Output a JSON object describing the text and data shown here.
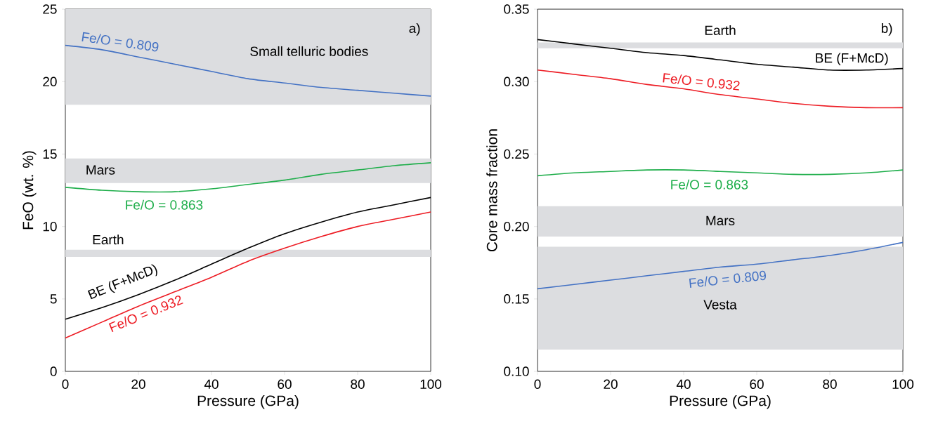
{
  "chart_data": [
    {
      "type": "line",
      "xlabel": "Pressure (GPa)",
      "ylabel": "FeO (wt. %)",
      "xlim": [
        0,
        100
      ],
      "ylim": [
        0,
        25
      ],
      "xticks": [
        0,
        20,
        40,
        60,
        80,
        100
      ],
      "yticks": [
        0,
        5,
        10,
        15,
        20,
        25
      ],
      "grid": false,
      "series": [
        {
          "name": "Fe/O = 0.809",
          "color": "#4472c4",
          "x": [
            0,
            10,
            20,
            30,
            40,
            50,
            60,
            70,
            80,
            90,
            100
          ],
          "values": [
            22.5,
            22.2,
            21.7,
            21.2,
            20.7,
            20.2,
            19.9,
            19.6,
            19.4,
            19.2,
            19.0
          ]
        },
        {
          "name": "Fe/O = 0.863",
          "color": "#1fae4b",
          "x": [
            0,
            10,
            20,
            30,
            40,
            50,
            60,
            70,
            80,
            90,
            100
          ],
          "values": [
            12.7,
            12.5,
            12.4,
            12.4,
            12.6,
            12.9,
            13.2,
            13.6,
            13.9,
            14.2,
            14.4
          ]
        },
        {
          "name": "BE (F+McD)",
          "color": "#000000",
          "x": [
            0,
            10,
            20,
            30,
            40,
            50,
            60,
            70,
            80,
            90,
            100
          ],
          "values": [
            3.6,
            4.4,
            5.3,
            6.3,
            7.4,
            8.5,
            9.5,
            10.3,
            11.0,
            11.5,
            12.0
          ]
        },
        {
          "name": "Fe/O = 0.932",
          "color": "#ed1c24",
          "x": [
            0,
            10,
            20,
            30,
            40,
            50,
            60,
            70,
            80,
            90,
            100
          ],
          "values": [
            2.3,
            3.4,
            4.5,
            5.5,
            6.5,
            7.6,
            8.5,
            9.3,
            10.0,
            10.5,
            11.0
          ]
        }
      ],
      "bands": [
        {
          "axis": "y",
          "from": 18.4,
          "to": 25,
          "color": "#dcdde0"
        },
        {
          "axis": "y",
          "from": 13.0,
          "to": 14.7,
          "color": "#dcdde0"
        },
        {
          "axis": "y",
          "from": 7.9,
          "to": 8.4,
          "color": "#dcdde0"
        }
      ],
      "annotations": [
        "Small telluric bodies",
        "Mars",
        "Earth",
        "a)"
      ]
    },
    {
      "type": "line",
      "xlabel": "Pressure (GPa)",
      "ylabel": "Core mass fraction",
      "xlim": [
        0,
        100
      ],
      "ylim": [
        0.1,
        0.35
      ],
      "xticks": [
        0,
        20,
        40,
        60,
        80,
        100
      ],
      "yticks": [
        {
          "value": 0.1,
          "label": "0.10"
        },
        {
          "value": 0.15,
          "label": "0.15"
        },
        {
          "value": 0.2,
          "label": "0.20"
        },
        {
          "value": 0.25,
          "label": "0.25"
        },
        {
          "value": 0.3,
          "label": "0.30"
        },
        {
          "value": 0.35,
          "label": "0.35"
        }
      ],
      "grid": false,
      "series": [
        {
          "name": "BE (F+McD)",
          "color": "#000000",
          "x": [
            0,
            10,
            20,
            30,
            40,
            50,
            60,
            70,
            80,
            90,
            100
          ],
          "values": [
            0.329,
            0.326,
            0.323,
            0.32,
            0.318,
            0.315,
            0.312,
            0.31,
            0.308,
            0.308,
            0.309
          ]
        },
        {
          "name": "Fe/O = 0.932",
          "color": "#ed1c24",
          "x": [
            0,
            10,
            20,
            30,
            40,
            50,
            60,
            70,
            80,
            90,
            100
          ],
          "values": [
            0.308,
            0.305,
            0.302,
            0.298,
            0.295,
            0.291,
            0.288,
            0.285,
            0.283,
            0.282,
            0.282
          ]
        },
        {
          "name": "Fe/O = 0.863",
          "color": "#1fae4b",
          "x": [
            0,
            10,
            20,
            30,
            40,
            50,
            60,
            70,
            80,
            90,
            100
          ],
          "values": [
            0.235,
            0.237,
            0.238,
            0.239,
            0.239,
            0.238,
            0.237,
            0.236,
            0.236,
            0.237,
            0.239
          ]
        },
        {
          "name": "Fe/O = 0.809",
          "color": "#4472c4",
          "x": [
            0,
            10,
            20,
            30,
            40,
            50,
            60,
            70,
            80,
            90,
            100
          ],
          "values": [
            0.157,
            0.16,
            0.163,
            0.166,
            0.169,
            0.172,
            0.174,
            0.177,
            0.18,
            0.184,
            0.189
          ]
        }
      ],
      "bands": [
        {
          "axis": "y",
          "from": 0.323,
          "to": 0.327,
          "color": "#dcdde0"
        },
        {
          "axis": "y",
          "from": 0.193,
          "to": 0.214,
          "color": "#dcdde0"
        },
        {
          "axis": "y",
          "from": 0.115,
          "to": 0.186,
          "color": "#dcdde0"
        }
      ],
      "annotations": [
        "Earth",
        "Mars",
        "Vesta",
        "b)"
      ]
    }
  ]
}
